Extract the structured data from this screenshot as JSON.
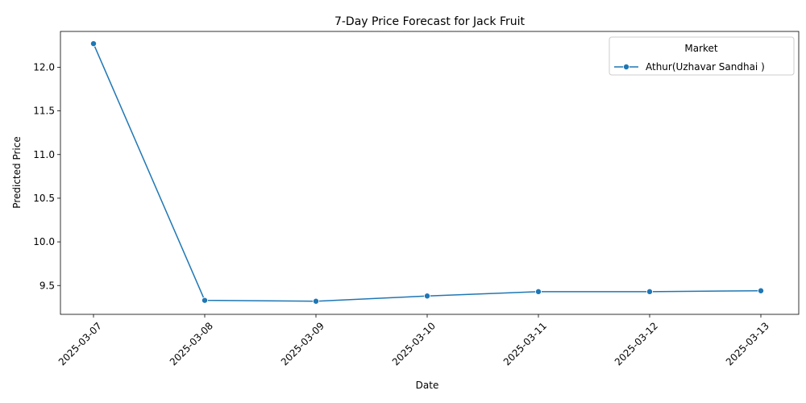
{
  "chart_data": {
    "type": "line",
    "title": "7-Day Price Forecast for Jack Fruit",
    "xlabel": "Date",
    "ylabel": "Predicted Price",
    "x": [
      "2025-03-07",
      "2025-03-08",
      "2025-03-09",
      "2025-03-10",
      "2025-03-11",
      "2025-03-12",
      "2025-03-13"
    ],
    "y_ticks": [
      "9.5",
      "10.0",
      "10.5",
      "11.0",
      "11.5",
      "12.0"
    ],
    "ylim": [
      9.17,
      12.41
    ],
    "series": [
      {
        "name": "Athur(Uzhavar Sandhai )",
        "values": [
          12.27,
          9.33,
          9.32,
          9.38,
          9.43,
          9.43,
          9.44
        ],
        "color": "#1f77b4",
        "marker": "circle"
      }
    ],
    "legend": {
      "title": "Market",
      "placement": "top-right"
    },
    "grid": false
  }
}
